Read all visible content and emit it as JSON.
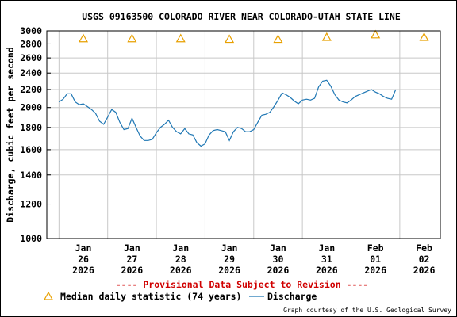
{
  "chart_data": {
    "type": "line",
    "title": "USGS 09163500 COLORADO RIVER NEAR COLORADO-UTAH STATE LINE",
    "ylabel": "Discharge, cubic feet per second",
    "xlabel": "",
    "yscale": "log",
    "ylim": [
      1000,
      3000
    ],
    "y_ticks": [
      1000,
      1200,
      1400,
      1600,
      1800,
      2000,
      2200,
      2400,
      2600,
      2800,
      3000
    ],
    "x_ticks": [
      {
        "month": "Jan",
        "day": "26",
        "year": "2026"
      },
      {
        "month": "Jan",
        "day": "27",
        "year": "2026"
      },
      {
        "month": "Jan",
        "day": "28",
        "year": "2026"
      },
      {
        "month": "Jan",
        "day": "29",
        "year": "2026"
      },
      {
        "month": "Jan",
        "day": "30",
        "year": "2026"
      },
      {
        "month": "Jan",
        "day": "31",
        "year": "2026"
      },
      {
        "month": "Feb",
        "day": "01",
        "year": "2026"
      },
      {
        "month": "Feb",
        "day": "02",
        "year": "2026"
      }
    ],
    "grid": true,
    "legend_position": "bottom",
    "series": [
      {
        "name": "Median daily statistic (74 years)",
        "type": "marker",
        "marker": "triangle",
        "color": "#e8a000",
        "x": [
          "2026-01-26 12:00",
          "2026-01-27 12:00",
          "2026-01-28 12:00",
          "2026-01-29 12:00",
          "2026-01-30 12:00",
          "2026-01-31 12:00",
          "2026-02-01 12:00",
          "2026-02-02 12:00"
        ],
        "values": [
          2880,
          2880,
          2880,
          2870,
          2870,
          2900,
          2940,
          2900
        ]
      },
      {
        "name": "Discharge",
        "type": "line",
        "color": "#1f77b4",
        "x": [
          "2026-01-26 00:00",
          "2026-01-26 02:00",
          "2026-01-26 04:00",
          "2026-01-26 06:00",
          "2026-01-26 08:00",
          "2026-01-26 10:00",
          "2026-01-26 12:00",
          "2026-01-26 14:00",
          "2026-01-26 16:00",
          "2026-01-26 18:00",
          "2026-01-26 20:00",
          "2026-01-26 22:00",
          "2026-01-27 00:00",
          "2026-01-27 02:00",
          "2026-01-27 04:00",
          "2026-01-27 06:00",
          "2026-01-27 08:00",
          "2026-01-27 10:00",
          "2026-01-27 12:00",
          "2026-01-27 14:00",
          "2026-01-27 16:00",
          "2026-01-27 18:00",
          "2026-01-27 20:00",
          "2026-01-27 22:00",
          "2026-01-28 00:00",
          "2026-01-28 02:00",
          "2026-01-28 04:00",
          "2026-01-28 06:00",
          "2026-01-28 08:00",
          "2026-01-28 10:00",
          "2026-01-28 12:00",
          "2026-01-28 14:00",
          "2026-01-28 16:00",
          "2026-01-28 18:00",
          "2026-01-28 20:00",
          "2026-01-28 22:00",
          "2026-01-29 00:00",
          "2026-01-29 02:00",
          "2026-01-29 04:00",
          "2026-01-29 06:00",
          "2026-01-29 08:00",
          "2026-01-29 10:00",
          "2026-01-29 12:00",
          "2026-01-29 14:00",
          "2026-01-29 16:00",
          "2026-01-29 18:00",
          "2026-01-29 20:00",
          "2026-01-29 22:00",
          "2026-01-30 00:00",
          "2026-01-30 02:00",
          "2026-01-30 04:00",
          "2026-01-30 06:00",
          "2026-01-30 08:00",
          "2026-01-30 10:00",
          "2026-01-30 12:00",
          "2026-01-30 14:00",
          "2026-01-30 16:00",
          "2026-01-30 18:00",
          "2026-01-30 20:00",
          "2026-01-30 22:00",
          "2026-01-31 00:00",
          "2026-01-31 02:00",
          "2026-01-31 04:00",
          "2026-01-31 06:00",
          "2026-01-31 08:00",
          "2026-01-31 10:00",
          "2026-01-31 12:00",
          "2026-01-31 14:00",
          "2026-01-31 16:00",
          "2026-01-31 18:00",
          "2026-01-31 20:00",
          "2026-01-31 22:00",
          "2026-02-01 00:00",
          "2026-02-01 02:00",
          "2026-02-01 04:00",
          "2026-02-01 06:00",
          "2026-02-01 08:00",
          "2026-02-01 10:00",
          "2026-02-01 12:00",
          "2026-02-01 14:00",
          "2026-02-01 16:00",
          "2026-02-01 18:00",
          "2026-02-01 20:00",
          "2026-02-01 22:00"
        ],
        "values": [
          2060,
          2090,
          2150,
          2150,
          2060,
          2030,
          2040,
          2010,
          1980,
          1940,
          1860,
          1830,
          1900,
          1980,
          1950,
          1850,
          1780,
          1790,
          1890,
          1800,
          1720,
          1680,
          1680,
          1690,
          1750,
          1800,
          1830,
          1870,
          1800,
          1760,
          1740,
          1790,
          1740,
          1730,
          1660,
          1630,
          1650,
          1730,
          1770,
          1780,
          1770,
          1760,
          1680,
          1760,
          1800,
          1790,
          1760,
          1760,
          1780,
          1850,
          1920,
          1930,
          1950,
          2010,
          2080,
          2160,
          2140,
          2110,
          2070,
          2040,
          2080,
          2090,
          2080,
          2100,
          2230,
          2300,
          2310,
          2240,
          2140,
          2080,
          2060,
          2050,
          2080,
          2120,
          2140,
          2160,
          2180,
          2200,
          2170,
          2150,
          2120,
          2100,
          2090,
          2200
        ]
      }
    ]
  },
  "footer": {
    "provisional_text": "---- Provisional Data Subject to Revision ----",
    "provisional_color": "#d00000",
    "credit": "Graph courtesy of the U.S. Geological Survey"
  }
}
